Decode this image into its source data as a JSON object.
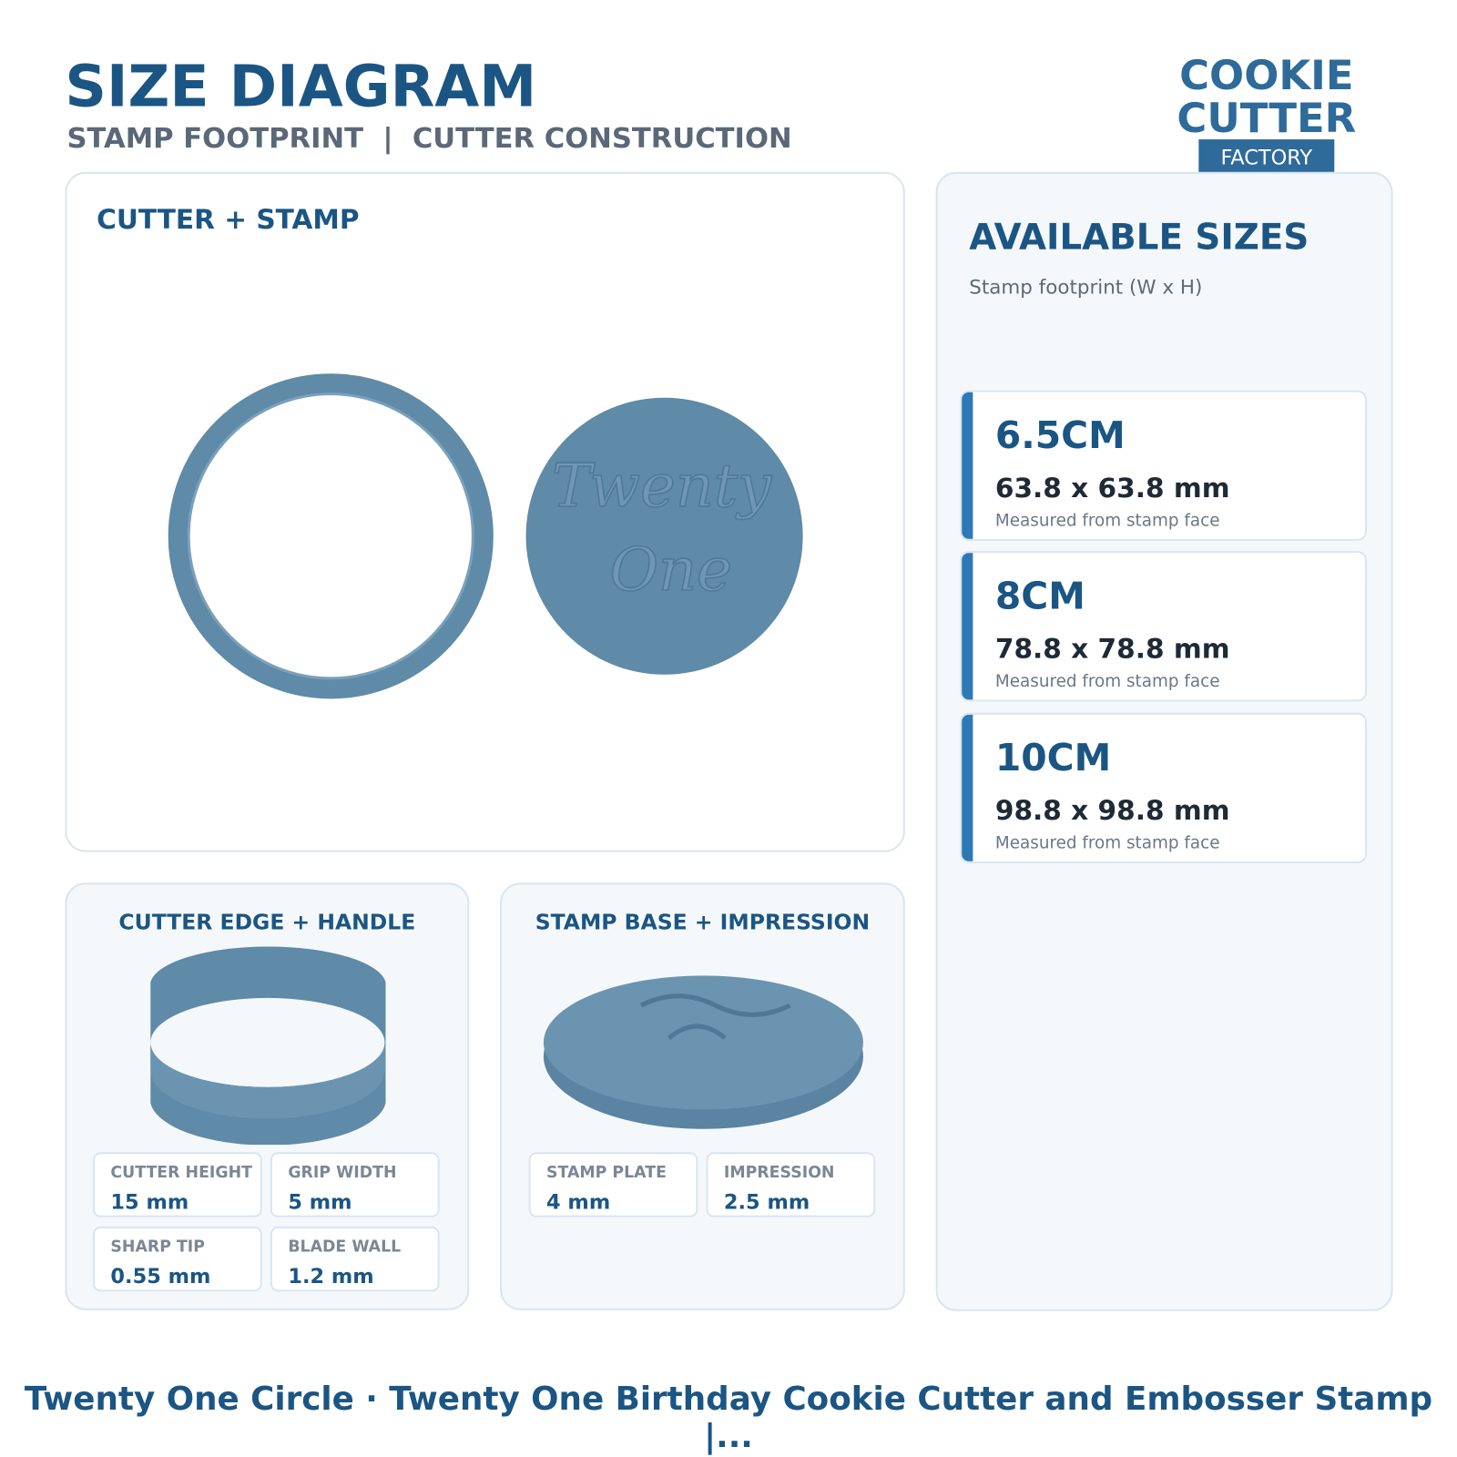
{
  "header": {
    "title": "SIZE DIAGRAM",
    "subtitle": "STAMP FOOTPRINT  |  CUTTER CONSTRUCTION"
  },
  "logo": {
    "lines": [
      "COOKIE",
      "CUTTER"
    ],
    "badge": "FACTORY"
  },
  "main_panel": {
    "title": "CUTTER + STAMP"
  },
  "sizes_panel": {
    "title": "AVAILABLE SIZES",
    "subtitle": "Stamp footprint (W x H)",
    "items": [
      {
        "name": "6.5CM",
        "dimensions": "63.8 x 63.8 mm",
        "note": "Measured from stamp face"
      },
      {
        "name": "8CM",
        "dimensions": "78.8 x 78.8 mm",
        "note": "Measured from stamp face"
      },
      {
        "name": "10CM",
        "dimensions": "98.8 x 98.8 mm",
        "note": "Measured from stamp face"
      }
    ]
  },
  "cutter_panel": {
    "title": "CUTTER EDGE + HANDLE",
    "specs": [
      {
        "label": "CUTTER HEIGHT",
        "value": "15 mm"
      },
      {
        "label": "GRIP WIDTH",
        "value": "5 mm"
      },
      {
        "label": "SHARP TIP",
        "value": "0.55 mm"
      },
      {
        "label": "BLADE WALL",
        "value": "1.2 mm"
      }
    ]
  },
  "stamp_panel": {
    "title": "STAMP BASE + IMPRESSION",
    "specs": [
      {
        "label": "STAMP PLATE",
        "value": "4 mm"
      },
      {
        "label": "IMPRESSION",
        "value": "2.5 mm"
      }
    ]
  },
  "stamp_engraving": [
    "Twenty",
    "One"
  ],
  "footer": {
    "text": "Twenty One Circle · Twenty One Birthday Cookie Cutter and Embosser Stamp |..."
  }
}
